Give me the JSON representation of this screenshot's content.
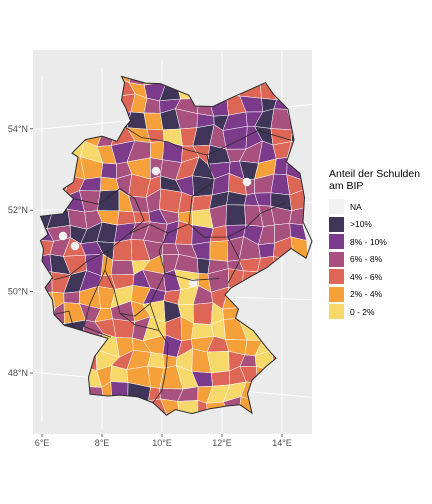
{
  "map": {
    "background": "#ebebeb",
    "grid_color": "#ffffff",
    "border_color": "#2b2b2b",
    "lat_ticks": [
      {
        "label": "54°N",
        "lat": 54
      },
      {
        "label": "52°N",
        "lat": 52
      },
      {
        "label": "50°N",
        "lat": 50
      },
      {
        "label": "48°N",
        "lat": 48
      }
    ],
    "lon_ticks": [
      {
        "label": "6°E",
        "lon": 6
      },
      {
        "label": "8°E",
        "lon": 8
      },
      {
        "label": "10°E",
        "lon": 10
      },
      {
        "label": "12°E",
        "lon": 12
      },
      {
        "label": "14°E",
        "lon": 14
      }
    ]
  },
  "legend": {
    "title": "Anteil der Schulden\nam BIP",
    "items": [
      {
        "label": "NA",
        "color": "#f2f2f2"
      },
      {
        "label": ">10%",
        "color": "#3f3558"
      },
      {
        "label": "8% - 10%",
        "color": "#7b3a8a"
      },
      {
        "label": "6% - 8%",
        "color": "#a8517e"
      },
      {
        "label": "4% - 6%",
        "color": "#dd6657"
      },
      {
        "label": "2% - 4%",
        "color": "#f5a03a"
      },
      {
        "label": "0 - 2%",
        "color": "#f7d86a"
      }
    ]
  }
}
